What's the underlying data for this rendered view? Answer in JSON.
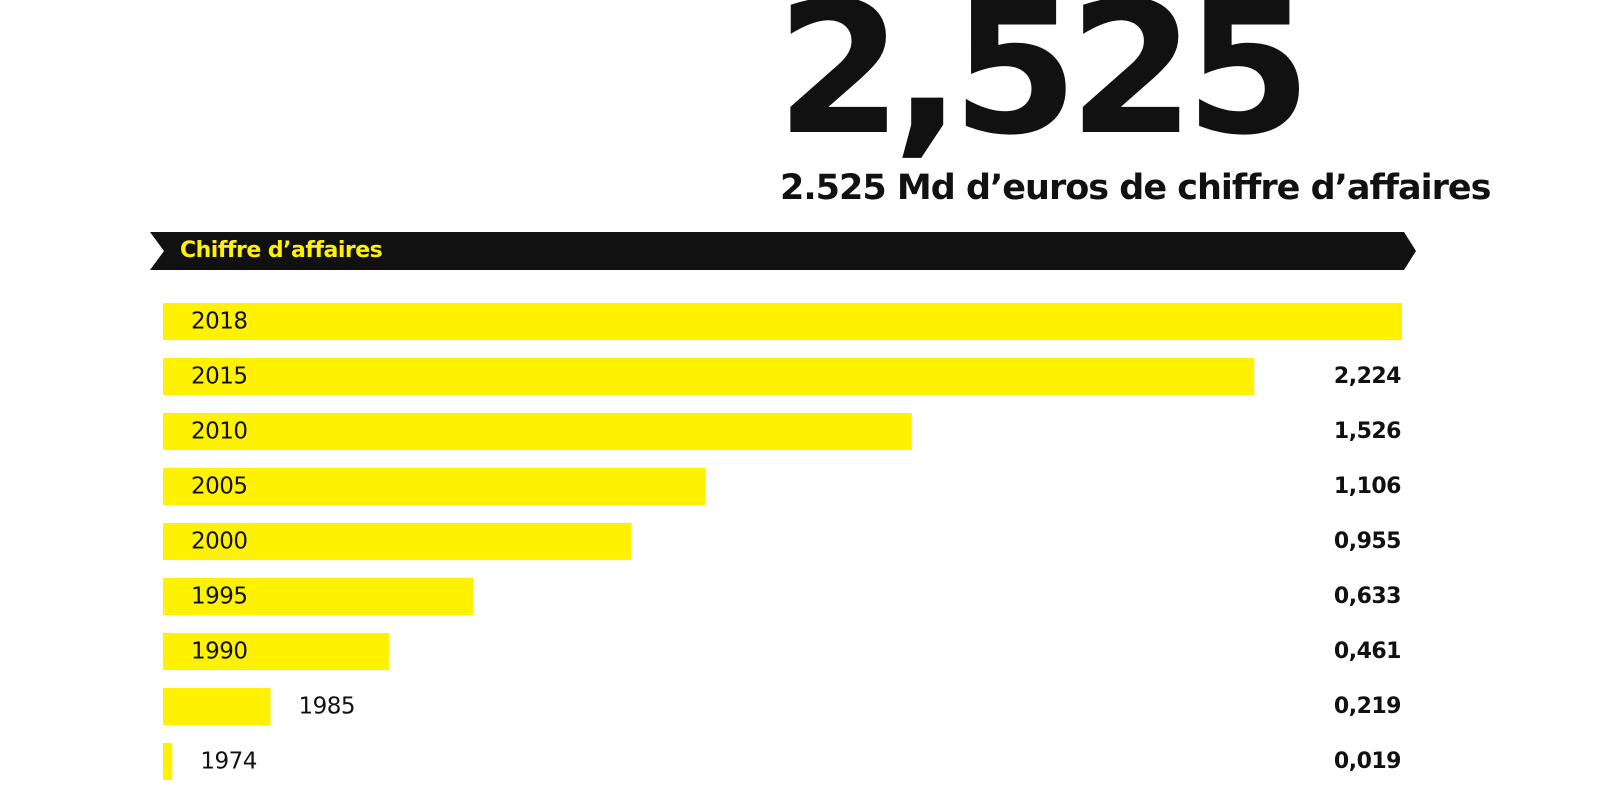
{
  "headline": {
    "value": "2,525",
    "subtitle": "2.525 Md d’euros de chiffre d’affaires"
  },
  "banner": {
    "label": "Chiffre d’affaires"
  },
  "colors": {
    "bar": "#fff200",
    "banner_background": "#111111",
    "banner_text": "#fff200",
    "text": "#111111"
  },
  "chart_data": {
    "type": "bar",
    "orientation": "horizontal",
    "categories": [
      "2018",
      "2015",
      "2010",
      "2005",
      "2000",
      "1995",
      "1990",
      "1985",
      "1974"
    ],
    "values": [
      2.525,
      2.224,
      1.526,
      1.106,
      0.955,
      0.633,
      0.461,
      0.219,
      0.019
    ],
    "value_labels": [
      "",
      "2,224",
      "1,526",
      "1,106",
      "0,955",
      "0,633",
      "0,461",
      "0,219",
      "0,019"
    ],
    "title": "Chiffre d’affaires",
    "xlim": [
      0,
      2.525
    ],
    "grid": false,
    "legend": "none"
  }
}
